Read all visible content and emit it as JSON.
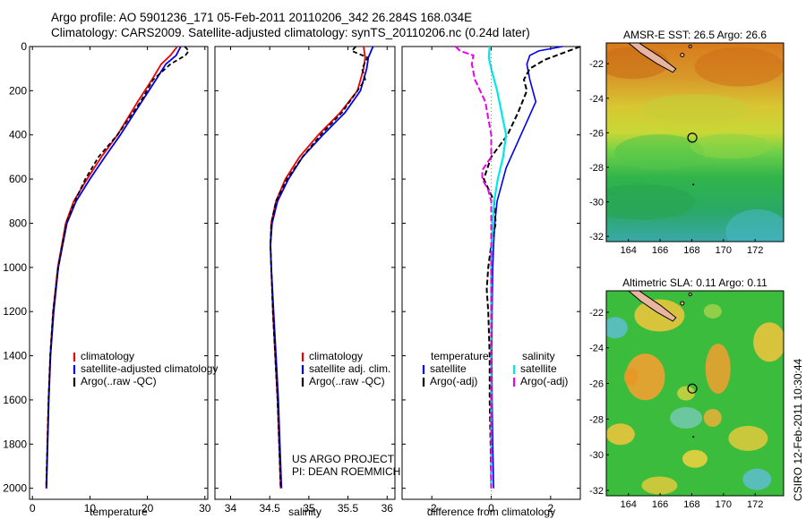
{
  "header": {
    "line1": "Argo profile: AO 5901236_171 05-Feb-2011 20110206_342 26.284S 168.034E",
    "line2": "Climatology: CARS2009. Satellite-adjusted climatology: synTS_20110206.nc (0.24d later)"
  },
  "credit": {
    "line1": "US ARGO PROJECT",
    "line2": "PI: DEAN ROEMMICH"
  },
  "stamp": "CSIRO 12-Feb-2011 10:30:44",
  "colors": {
    "climatology": "#ee0000",
    "satellite": "#0000ee",
    "argo": "#000000",
    "sal_satellite": "#00e8e8",
    "sal_argo": "#ee00ee"
  },
  "chart_data": [
    {
      "type": "line",
      "xlabel": "temperature",
      "ylabel": "",
      "xlim": [
        -0.5,
        30.5
      ],
      "ylim": [
        2050,
        0
      ],
      "y_reversed": true,
      "x_ticks": [
        "0",
        "10",
        "20",
        "30"
      ],
      "y_ticks": [
        "0",
        "200",
        "400",
        "600",
        "800",
        "1000",
        "1200",
        "1400",
        "1600",
        "1800",
        "2000"
      ],
      "legend": [
        "climatology",
        "satellite-adjusted climatology",
        "Argo(..raw -QC)"
      ],
      "series": [
        {
          "name": "climatology",
          "y": [
            0,
            40,
            80,
            150,
            250,
            400,
            500,
            600,
            700,
            800,
            1000,
            1200,
            1400,
            1600,
            1800,
            2000
          ],
          "x": [
            25.2,
            24.0,
            22.4,
            20.8,
            18.3,
            14.8,
            12.0,
            9.5,
            7.2,
            5.8,
            4.4,
            3.6,
            3.1,
            2.8,
            2.6,
            2.4
          ]
        },
        {
          "name": "satellite-adjusted climatology",
          "y": [
            0,
            40,
            80,
            150,
            250,
            400,
            500,
            600,
            700,
            800,
            1000,
            1200,
            1400,
            1600,
            1800,
            2000
          ],
          "x": [
            25.8,
            25.0,
            23.2,
            21.5,
            19.0,
            15.3,
            12.6,
            10.0,
            7.6,
            6.0,
            4.5,
            3.7,
            3.15,
            2.85,
            2.65,
            2.45
          ]
        },
        {
          "name": "Argo(..raw -QC)",
          "y": [
            0,
            20,
            40,
            80,
            150,
            250,
            400,
            500,
            600,
            700,
            800,
            1000,
            1200,
            1400,
            1600,
            1800,
            2000
          ],
          "x": [
            26.5,
            27.2,
            26.6,
            24.0,
            21.0,
            18.8,
            14.8,
            11.5,
            9.2,
            7.4,
            5.9,
            4.5,
            3.6,
            3.1,
            2.8,
            2.6,
            2.4
          ]
        }
      ]
    },
    {
      "type": "line",
      "xlabel": "salinity",
      "ylabel": "",
      "xlim": [
        33.8,
        36.1
      ],
      "ylim": [
        2050,
        0
      ],
      "y_reversed": true,
      "x_ticks": [
        "34",
        "34.5",
        "35",
        "35.5",
        "36"
      ],
      "legend": [
        "climatology",
        "satellite adj. clim.",
        "Argo(..raw -QC)"
      ],
      "series": [
        {
          "name": "climatology",
          "y": [
            0,
            50,
            100,
            200,
            300,
            400,
            500,
            600,
            700,
            800,
            900,
            1000,
            1200,
            1400,
            1600,
            1800,
            2000
          ],
          "x": [
            35.7,
            35.72,
            35.7,
            35.62,
            35.4,
            35.12,
            34.88,
            34.7,
            34.58,
            34.52,
            34.51,
            34.52,
            34.54,
            34.57,
            34.6,
            34.62,
            34.64
          ]
        },
        {
          "name": "satellite adj. clim.",
          "y": [
            0,
            50,
            100,
            200,
            300,
            400,
            500,
            600,
            700,
            800,
            900,
            1000,
            1200,
            1400,
            1600,
            1800,
            2000
          ],
          "x": [
            35.82,
            35.76,
            35.74,
            35.66,
            35.46,
            35.18,
            34.92,
            34.74,
            34.6,
            34.53,
            34.51,
            34.52,
            34.55,
            34.58,
            34.61,
            34.63,
            34.65
          ]
        },
        {
          "name": "Argo(..raw -QC)",
          "y": [
            0,
            20,
            50,
            100,
            150,
            200,
            300,
            400,
            500,
            600,
            700,
            800,
            900,
            1000,
            1200,
            1400,
            1600,
            1800,
            2000
          ],
          "x": [
            35.6,
            35.55,
            35.75,
            35.68,
            35.72,
            35.62,
            35.42,
            35.15,
            34.92,
            34.72,
            34.58,
            34.52,
            34.51,
            34.52,
            34.54,
            34.57,
            34.6,
            34.62,
            34.64
          ]
        }
      ]
    },
    {
      "type": "line",
      "xlabel": "difference from climatology",
      "ylabel": "",
      "xlim": [
        -3,
        3
      ],
      "ylim": [
        2050,
        0
      ],
      "y_reversed": true,
      "x_ticks": [
        "-2",
        "0",
        "2"
      ],
      "legend": [
        "temperature",
        "satellite",
        "Argo(-adj)",
        "salinity",
        "satellite",
        "Argo(-adj)"
      ],
      "series": [
        {
          "name": "satellite",
          "variable": "temperature",
          "y": [
            0,
            20,
            40,
            80,
            150,
            250,
            400,
            550,
            650,
            700,
            800,
            900,
            1000,
            1200,
            1400,
            1600,
            1800,
            2000
          ],
          "x": [
            2.4,
            1.6,
            1.3,
            1.2,
            1.3,
            1.5,
            1.0,
            0.5,
            0.3,
            0.2,
            0.12,
            0.08,
            0.05,
            0.03,
            0.02,
            0.03,
            0.05,
            0.08
          ]
        },
        {
          "name": "Argo(-adj)",
          "variable": "temperature",
          "y": [
            0,
            30,
            60,
            100,
            150,
            200,
            300,
            400,
            500,
            600,
            700,
            800,
            900,
            1000,
            1100,
            1200,
            1400,
            1600,
            1800,
            2000
          ],
          "x": [
            3.0,
            2.4,
            1.8,
            1.3,
            1.1,
            1.2,
            0.9,
            0.55,
            0.0,
            -0.25,
            0.1,
            0.15,
            0.0,
            -0.1,
            -0.15,
            -0.1,
            -0.05,
            -0.05,
            -0.02,
            0.0
          ]
        },
        {
          "name": "satellite",
          "variable": "salinity",
          "y": [
            0,
            50,
            100,
            200,
            300,
            400,
            500,
            600,
            700,
            800,
            900,
            1000,
            1200,
            1400,
            1600,
            1800,
            2000
          ],
          "x": [
            -0.05,
            -0.08,
            0.0,
            0.2,
            0.35,
            0.5,
            0.4,
            0.22,
            0.1,
            0.05,
            0.02,
            0.0,
            0.0,
            0.0,
            0.0,
            0.0,
            0.0
          ]
        },
        {
          "name": "Argo(-adj)",
          "variable": "salinity",
          "y": [
            0,
            20,
            40,
            80,
            150,
            250,
            400,
            500,
            560,
            600,
            650,
            700,
            800,
            900,
            1000,
            1200,
            1400,
            1600,
            1800,
            2000
          ],
          "x": [
            -1.2,
            -1.05,
            -0.6,
            -0.65,
            -0.55,
            -0.2,
            0.0,
            0.0,
            -0.3,
            -0.3,
            -0.1,
            0.0,
            0.0,
            0.0,
            0.0,
            0.0,
            0.0,
            0.0,
            0.0,
            0.0
          ]
        }
      ]
    },
    {
      "type": "heatmap",
      "title": "AMSR-E SST: 26.5 Argo: 26.6",
      "xlim": [
        162.6,
        173.8
      ],
      "ylim": [
        -32.3,
        -20.8
      ],
      "x_ticks": [
        "164",
        "166",
        "168",
        "170",
        "172"
      ],
      "y_ticks": [
        "-22",
        "-24",
        "-26",
        "-28",
        "-30",
        "-32"
      ],
      "marker": {
        "lon": 168.034,
        "lat": -26.284
      }
    },
    {
      "type": "heatmap",
      "title": "Altimetric SLA: 0.11 Argo: 0.11",
      "xlim": [
        162.6,
        173.8
      ],
      "ylim": [
        -32.3,
        -20.8
      ],
      "x_ticks": [
        "164",
        "166",
        "168",
        "170",
        "172"
      ],
      "y_ticks": [
        "-22",
        "-24",
        "-26",
        "-28",
        "-30",
        "-32"
      ],
      "marker": {
        "lon": 168.034,
        "lat": -26.284
      }
    }
  ]
}
